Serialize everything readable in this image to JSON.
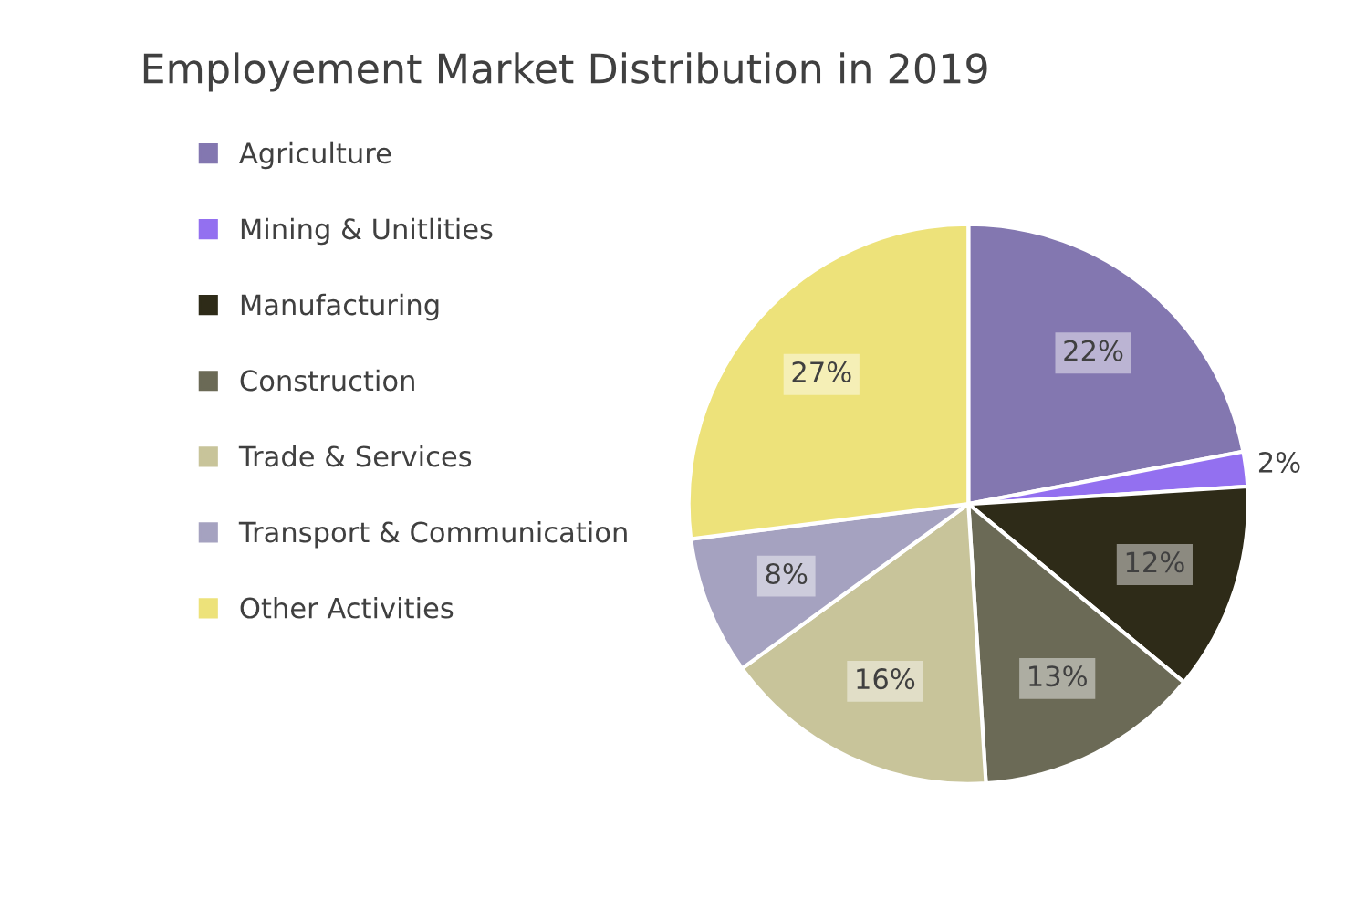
{
  "chart_data": {
    "type": "pie",
    "title": "Employement Market Distribution in 2019",
    "categories": [
      "Agriculture",
      "Mining & Unitlities",
      "Manufacturing",
      "Construction",
      "Trade & Services",
      "Transport & Communication",
      "Other Activities"
    ],
    "values": [
      22,
      2,
      12,
      13,
      16,
      8,
      27
    ],
    "colors": [
      "#8377b0",
      "#9370f0",
      "#2e2b18",
      "#6b6a56",
      "#c8c49a",
      "#a5a2c0",
      "#ede27a"
    ],
    "value_labels": [
      "22%",
      "2%",
      "12%",
      "13%",
      "16%",
      "8%",
      "27%"
    ],
    "legend": "left"
  }
}
